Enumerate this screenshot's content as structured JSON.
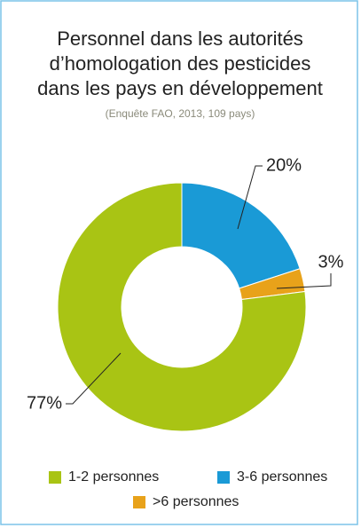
{
  "chart_data": {
    "type": "donut",
    "title": [
      "Personnel dans les autorités",
      "d’homologation des pesticides",
      "dans les pays en développement"
    ],
    "subtitle": "(Enquête FAO, 2013, 109 pays)",
    "categories": [
      "3-6 personnes",
      ">6 personnes",
      "1-2 personnes"
    ],
    "values": [
      20,
      3,
      77
    ],
    "value_labels": [
      "20%",
      "3%",
      "77%"
    ],
    "colors": [
      "#1a9ad6",
      "#e8a21a",
      "#a9c414"
    ],
    "legend_order": [
      2,
      0,
      1
    ]
  }
}
